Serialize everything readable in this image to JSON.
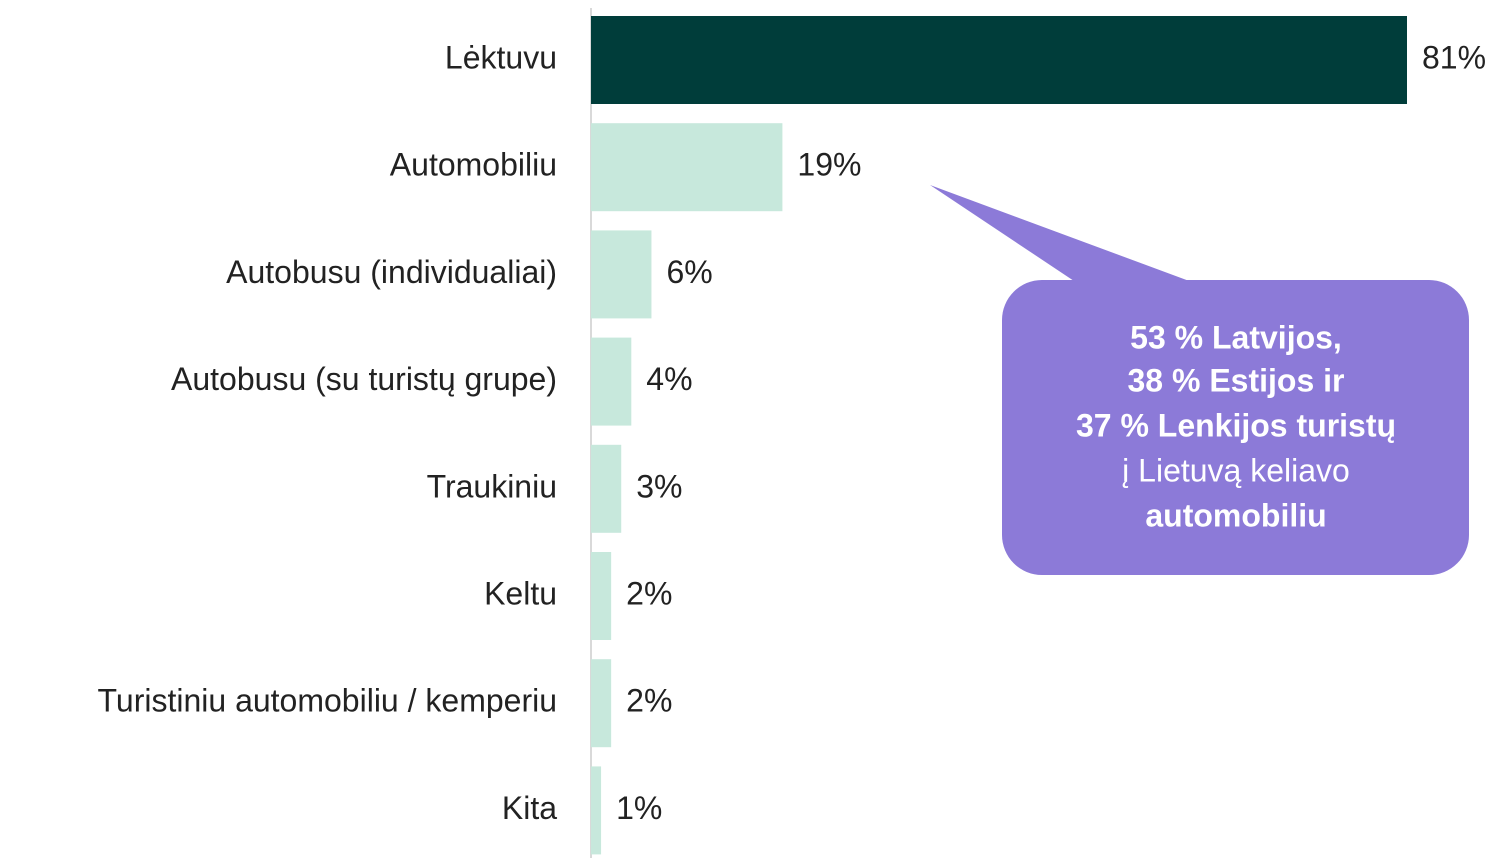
{
  "chart_data": {
    "type": "barh",
    "categories": [
      "Lėktuvu",
      "Automobiliu",
      "Autobusu (individualiai)",
      "Autobusu (su turistų grupe)",
      "Traukiniu",
      "Keltu",
      "Turistiniu automobiliu / kemperiu",
      "Kita"
    ],
    "values": [
      81,
      19,
      6,
      4,
      3,
      2,
      2,
      1
    ],
    "value_labels": [
      "81%",
      "19%",
      "6%",
      "4%",
      "3%",
      "2%",
      "2%",
      "1%"
    ],
    "colors": [
      "#003d3a",
      "#c7e8dc",
      "#c7e8dc",
      "#c7e8dc",
      "#c7e8dc",
      "#c7e8dc",
      "#c7e8dc",
      "#c7e8dc"
    ],
    "xlim": [
      0,
      81
    ],
    "annotation": {
      "lines": [
        "53 % Latvijos,",
        "38 % Estijos ir",
        "37 % Lenkijos turistų",
        "į Lietuvą keliavo",
        "automobiliu"
      ],
      "bold": [
        true,
        true,
        true,
        false,
        true
      ],
      "color": "#8c7ad8"
    }
  }
}
